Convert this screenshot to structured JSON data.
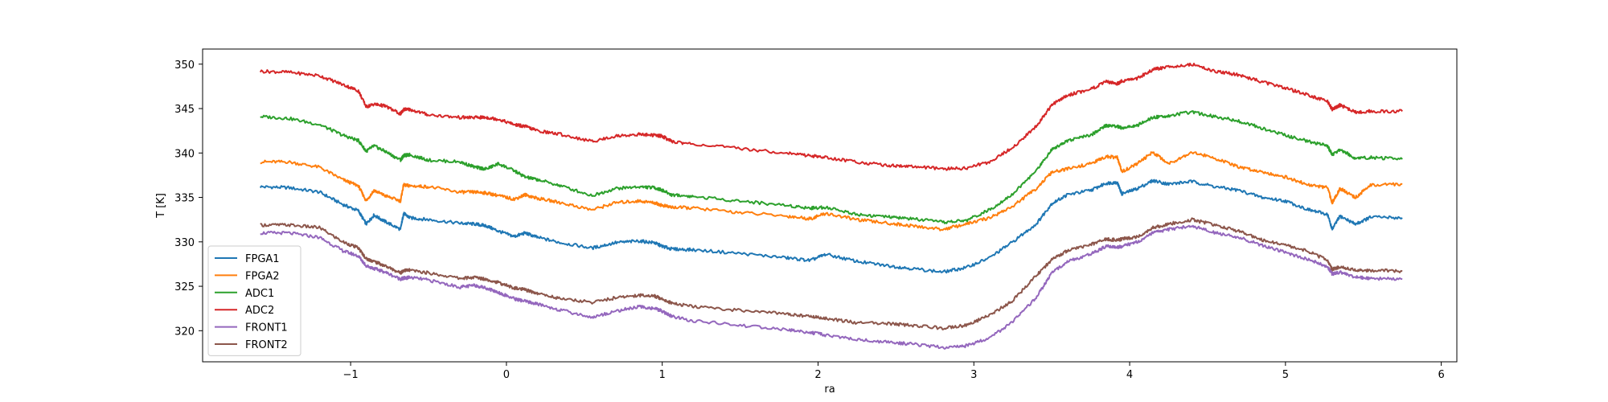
{
  "chart_data": {
    "type": "line",
    "title": "",
    "xlabel": "ra",
    "ylabel": "T [K]",
    "xlim": [
      -1.95,
      6.1
    ],
    "ylim": [
      316.5,
      351.7
    ],
    "xticks": [
      -1,
      0,
      1,
      2,
      3,
      4,
      5,
      6
    ],
    "yticks": [
      320,
      325,
      330,
      335,
      340,
      345,
      350
    ],
    "x": [
      -1.58,
      -1.4,
      -1.2,
      -1.05,
      -0.95,
      -0.9,
      -0.85,
      -0.78,
      -0.68,
      -0.66,
      -0.62,
      -0.5,
      -0.3,
      -0.2,
      -0.13,
      -0.05,
      0.05,
      0.12,
      0.2,
      0.35,
      0.55,
      0.7,
      0.85,
      0.95,
      1.0,
      1.06,
      1.2,
      1.5,
      1.8,
      1.95,
      2.05,
      2.25,
      2.45,
      2.6,
      2.8,
      2.95,
      3.1,
      3.25,
      3.4,
      3.5,
      3.6,
      3.75,
      3.85,
      3.92,
      3.95,
      4.05,
      4.15,
      4.25,
      4.4,
      4.55,
      4.7,
      4.85,
      5.0,
      5.15,
      5.27,
      5.3,
      5.35,
      5.45,
      5.55,
      5.75
    ],
    "series": [
      {
        "name": "FPGA1",
        "color": "#1f77b4",
        "values": [
          336.2,
          336.1,
          335.6,
          334.2,
          333.5,
          332.0,
          333.0,
          332.3,
          331.4,
          333.2,
          332.7,
          332.5,
          332.1,
          332.0,
          331.8,
          331.2,
          330.6,
          331.0,
          330.5,
          329.9,
          329.3,
          329.9,
          330.1,
          329.9,
          329.5,
          329.2,
          329.1,
          328.7,
          328.2,
          327.9,
          328.6,
          327.8,
          327.3,
          327.0,
          326.6,
          327.1,
          328.2,
          330.0,
          332.0,
          334.3,
          335.3,
          335.8,
          336.6,
          336.7,
          335.4,
          336.0,
          336.9,
          336.5,
          336.8,
          336.2,
          335.8,
          335.0,
          334.6,
          333.6,
          333.1,
          331.4,
          332.9,
          332.0,
          332.8,
          332.7
        ]
      },
      {
        "name": "FPGA2",
        "color": "#ff7f0e",
        "values": [
          339.0,
          339.0,
          338.4,
          337.0,
          336.3,
          334.6,
          335.8,
          335.2,
          334.6,
          336.4,
          336.3,
          336.2,
          335.6,
          335.6,
          335.5,
          335.2,
          334.8,
          335.3,
          334.9,
          334.4,
          333.6,
          334.4,
          334.6,
          334.4,
          334.1,
          333.9,
          333.8,
          333.3,
          332.9,
          332.6,
          333.2,
          332.5,
          332.1,
          331.8,
          331.4,
          332.0,
          332.7,
          334.0,
          336.0,
          337.8,
          338.2,
          338.8,
          339.6,
          339.5,
          337.9,
          338.8,
          340.1,
          338.8,
          340.1,
          339.4,
          338.4,
          337.9,
          337.3,
          336.4,
          336.1,
          334.4,
          336.0,
          335.0,
          336.4,
          336.5
        ]
      },
      {
        "name": "ADC1",
        "color": "#2ca02c",
        "values": [
          344.1,
          343.9,
          343.2,
          342.0,
          341.4,
          340.2,
          340.8,
          340.2,
          339.2,
          339.7,
          339.8,
          339.2,
          339.0,
          338.4,
          338.2,
          338.8,
          338.0,
          337.3,
          337.0,
          336.3,
          335.2,
          336.0,
          336.2,
          336.1,
          335.8,
          335.3,
          335.1,
          334.6,
          334.1,
          333.8,
          333.9,
          333.1,
          332.8,
          332.6,
          332.2,
          332.4,
          333.6,
          335.4,
          338.0,
          340.4,
          341.4,
          342.0,
          343.1,
          343.0,
          342.8,
          343.1,
          344.0,
          344.2,
          344.6,
          344.1,
          343.6,
          342.8,
          342.0,
          341.3,
          340.8,
          339.8,
          340.4,
          339.4,
          339.5,
          339.3
        ]
      },
      {
        "name": "ADC2",
        "color": "#d62728",
        "values": [
          349.2,
          349.1,
          348.7,
          347.7,
          347.0,
          345.2,
          345.5,
          345.3,
          344.4,
          344.9,
          344.9,
          344.3,
          344.0,
          344.0,
          344.0,
          343.8,
          343.2,
          343.0,
          342.5,
          342.1,
          341.3,
          341.9,
          342.1,
          342.0,
          341.9,
          341.3,
          341.0,
          340.5,
          340.0,
          339.7,
          339.5,
          339.0,
          338.6,
          338.5,
          338.2,
          338.3,
          339.0,
          340.6,
          343.0,
          345.4,
          346.5,
          347.2,
          348.0,
          347.8,
          348.1,
          348.4,
          349.4,
          349.7,
          350.0,
          349.2,
          348.8,
          348.0,
          347.3,
          346.5,
          345.8,
          344.9,
          345.4,
          344.6,
          344.7,
          344.7
        ]
      },
      {
        "name": "FRONT1",
        "color": "#9467bd",
        "values": [
          331.0,
          331.0,
          330.5,
          329.0,
          328.4,
          327.3,
          327.0,
          326.6,
          325.8,
          325.9,
          326.0,
          325.7,
          324.9,
          325.1,
          324.8,
          324.3,
          323.6,
          323.3,
          323.0,
          322.3,
          321.5,
          322.2,
          322.7,
          322.5,
          322.2,
          321.6,
          321.1,
          320.6,
          320.1,
          319.8,
          319.5,
          319.0,
          318.7,
          318.5,
          318.1,
          318.3,
          319.2,
          321.0,
          323.7,
          326.5,
          327.8,
          328.6,
          329.5,
          329.4,
          329.5,
          330.0,
          331.0,
          331.4,
          331.8,
          331.0,
          330.5,
          329.6,
          328.8,
          328.0,
          327.2,
          326.4,
          326.6,
          326.0,
          325.9,
          325.8
        ]
      },
      {
        "name": "FRONT2",
        "color": "#8c564b",
        "values": [
          331.9,
          331.9,
          331.6,
          330.0,
          329.3,
          328.1,
          327.8,
          327.3,
          326.5,
          326.8,
          326.8,
          326.5,
          325.9,
          326.0,
          325.8,
          325.4,
          324.8,
          324.6,
          324.2,
          323.6,
          323.2,
          323.7,
          324.0,
          323.9,
          323.6,
          323.1,
          322.7,
          322.3,
          321.9,
          321.6,
          321.4,
          320.9,
          320.8,
          320.6,
          320.3,
          320.6,
          321.7,
          323.4,
          326.2,
          328.0,
          329.0,
          329.7,
          330.3,
          330.2,
          330.3,
          330.6,
          331.6,
          332.0,
          332.5,
          331.9,
          331.2,
          330.2,
          329.6,
          328.9,
          327.9,
          326.9,
          327.2,
          326.8,
          326.8,
          326.7
        ]
      }
    ],
    "legend": [
      "FPGA1",
      "FPGA2",
      "ADC1",
      "ADC2",
      "FRONT1",
      "FRONT2"
    ],
    "legend_position": "lower-left",
    "grid": false
  }
}
